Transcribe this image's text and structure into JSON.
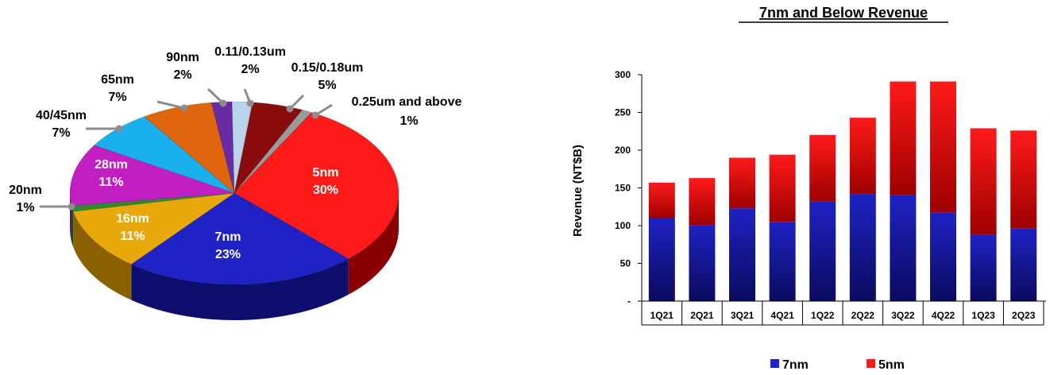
{
  "chart_data": [
    {
      "type": "pie",
      "slices": [
        {
          "label": "5nm",
          "pct_text": "30%",
          "value": 30,
          "color": "#ff1a1a",
          "dark": "#8a0000"
        },
        {
          "label": "7nm",
          "pct_text": "23%",
          "value": 23,
          "color": "#1f22c4",
          "dark": "#0d0e6e"
        },
        {
          "label": "16nm",
          "pct_text": "11%",
          "value": 11,
          "color": "#e8a80c",
          "dark": "#8a6000"
        },
        {
          "label": "20nm",
          "pct_text": "1%",
          "value": 1,
          "color": "#2e8b2e",
          "dark": "#145214"
        },
        {
          "label": "28nm",
          "pct_text": "11%",
          "value": 11,
          "color": "#c21fc2",
          "dark": "#6e0d6e"
        },
        {
          "label": "40/45nm",
          "pct_text": "7%",
          "value": 7,
          "color": "#1ab0ee",
          "dark": "#0a6a90"
        },
        {
          "label": "65nm",
          "pct_text": "7%",
          "value": 7,
          "color": "#e0650c",
          "dark": "#7a3400"
        },
        {
          "label": "90nm",
          "pct_text": "2%",
          "value": 2,
          "color": "#6a2aa6",
          "dark": "#3a1260"
        },
        {
          "label": "0.11/0.13um",
          "pct_text": "2%",
          "value": 2,
          "color": "#b8d4ec",
          "dark": "#6f8aa3"
        },
        {
          "label": "0.15/0.18um",
          "pct_text": "5%",
          "value": 5,
          "color": "#8a0c0c",
          "dark": "#4a0404"
        },
        {
          "label": "0.25um and above",
          "pct_text": "1%",
          "value": 1,
          "color": "#9a9a9a",
          "dark": "#5a5a5a"
        }
      ]
    },
    {
      "type": "bar",
      "stacked": true,
      "title": "7nm and Below Revenue",
      "ylabel": "Revenue (NT$B)",
      "categories": [
        "1Q21",
        "2Q21",
        "3Q21",
        "4Q21",
        "1Q22",
        "2Q22",
        "3Q22",
        "4Q22",
        "1Q23",
        "2Q23"
      ],
      "ylim": [
        0,
        300
      ],
      "yticks": [
        "-",
        "50",
        "100",
        "150",
        "200",
        "250",
        "300"
      ],
      "series": [
        {
          "name": "7nm",
          "color": "#1f22c4",
          "values": [
            110,
            101,
            123,
            105,
            132,
            142,
            141,
            117,
            88,
            96
          ]
        },
        {
          "name": "5nm",
          "color": "#ff1a1a",
          "values": [
            47,
            62,
            67,
            89,
            88,
            101,
            150,
            174,
            141,
            130
          ]
        }
      ],
      "legend_position": "bottom"
    }
  ]
}
